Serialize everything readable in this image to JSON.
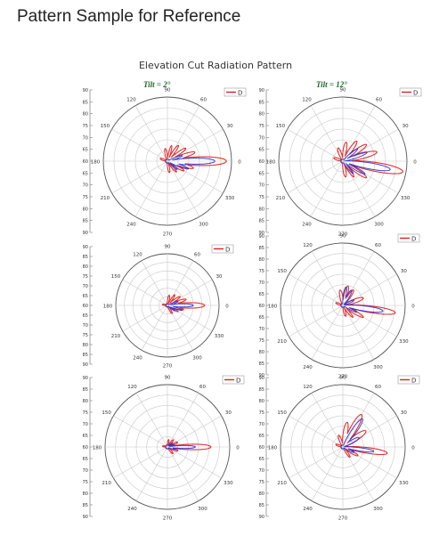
{
  "page": {
    "title": "Pattern Sample for Reference"
  },
  "figure": {
    "title": "Elevation Cut Radiation Pattern",
    "column_labels": [
      "Tilt = 2°",
      "Tilt = 12°"
    ],
    "colors": {
      "series_red": "#e02020",
      "series_blue": "#3030c8",
      "grid": "#c8c8c8",
      "title_green": "#1c6b2e"
    }
  },
  "chart_data": [
    {
      "type": "polar",
      "panel": "row1-left",
      "tilt_deg": 2,
      "angle_labels": [
        "0",
        "30",
        "60",
        "90",
        "120",
        "150",
        "180",
        "210",
        "240",
        "270",
        "300",
        "330"
      ],
      "r_labels": [
        "90",
        "85",
        "80",
        "75",
        "70",
        "65",
        "60",
        "65",
        "70",
        "75",
        "80",
        "85",
        "90"
      ],
      "legend": [
        "D"
      ],
      "series": [
        {
          "color": "red",
          "lobes": [
            [
              0,
              0.92,
              7
            ],
            [
              18,
              0.45,
              6
            ],
            [
              35,
              0.35,
              6
            ],
            [
              55,
              0.3,
              6
            ],
            [
              75,
              0.25,
              6
            ],
            [
              100,
              0.2,
              8
            ],
            [
              -15,
              0.42,
              6
            ],
            [
              -30,
              0.3,
              6
            ],
            [
              -50,
              0.22,
              6
            ],
            [
              -80,
              0.18,
              8
            ],
            [
              160,
              0.12,
              10
            ]
          ]
        },
        {
          "color": "blue",
          "lobes": [
            [
              0,
              0.74,
              6
            ],
            [
              -20,
              0.35,
              5
            ],
            [
              20,
              0.25,
              5
            ],
            [
              -40,
              0.2,
              6
            ],
            [
              -10,
              0.3,
              4
            ]
          ]
        }
      ]
    },
    {
      "type": "polar",
      "panel": "row1-right",
      "tilt_deg": 12,
      "angle_labels": [
        "0",
        "30",
        "60",
        "90",
        "120",
        "150",
        "180",
        "210",
        "240",
        "270",
        "300",
        "330"
      ],
      "r_labels": [
        "90",
        "85",
        "80",
        "75",
        "70",
        "65",
        "60",
        "65",
        "70",
        "75",
        "80",
        "85",
        "90"
      ],
      "legend": [
        "D"
      ],
      "series": [
        {
          "color": "red",
          "lobes": [
            [
              -10,
              0.95,
              7
            ],
            [
              15,
              0.55,
              7
            ],
            [
              35,
              0.45,
              7
            ],
            [
              55,
              0.38,
              7
            ],
            [
              80,
              0.3,
              8
            ],
            [
              110,
              0.22,
              9
            ],
            [
              -35,
              0.45,
              6
            ],
            [
              -55,
              0.3,
              6
            ],
            [
              -80,
              0.25,
              8
            ],
            [
              160,
              0.15,
              10
            ]
          ]
        },
        {
          "color": "blue",
          "lobes": [
            [
              -10,
              0.75,
              6
            ],
            [
              20,
              0.4,
              6
            ],
            [
              40,
              0.3,
              6
            ],
            [
              -30,
              0.4,
              5
            ],
            [
              -50,
              0.25,
              6
            ]
          ]
        }
      ]
    },
    {
      "type": "polar",
      "panel": "row2-left",
      "tilt_deg": 2,
      "angle_labels": [
        "0",
        "30",
        "60",
        "90",
        "120",
        "150",
        "180",
        "210",
        "240",
        "270",
        "300",
        "330"
      ],
      "r_labels": [
        "90",
        "85",
        "80",
        "75",
        "70",
        "65",
        "60",
        "65",
        "70",
        "75",
        "80",
        "85",
        "90"
      ],
      "legend": [
        "D"
      ],
      "series": [
        {
          "color": "red",
          "lobes": [
            [
              0,
              0.72,
              7
            ],
            [
              18,
              0.38,
              6
            ],
            [
              35,
              0.3,
              6
            ],
            [
              55,
              0.25,
              6
            ],
            [
              80,
              0.2,
              8
            ],
            [
              -15,
              0.32,
              6
            ],
            [
              -30,
              0.24,
              6
            ],
            [
              -60,
              0.18,
              8
            ],
            [
              170,
              0.1,
              10
            ]
          ]
        },
        {
          "color": "blue",
          "lobes": [
            [
              0,
              0.5,
              6
            ],
            [
              -18,
              0.3,
              5
            ],
            [
              20,
              0.22,
              5
            ],
            [
              -35,
              0.18,
              6
            ]
          ]
        }
      ]
    },
    {
      "type": "polar",
      "panel": "row2-right",
      "tilt_deg": 12,
      "angle_labels": [
        "0",
        "30",
        "60",
        "90",
        "120",
        "150",
        "180",
        "210",
        "240",
        "270",
        "300",
        "330"
      ],
      "r_labels": [
        "90",
        "85",
        "80",
        "75",
        "70",
        "65",
        "60",
        "65",
        "70",
        "75",
        "80",
        "85",
        "90"
      ],
      "legend": [
        "D"
      ],
      "series": [
        {
          "color": "red",
          "lobes": [
            [
              -8,
              0.85,
              6
            ],
            [
              20,
              0.35,
              8
            ],
            [
              55,
              0.3,
              8
            ],
            [
              75,
              0.32,
              8
            ],
            [
              100,
              0.25,
              9
            ],
            [
              -30,
              0.38,
              6
            ],
            [
              -50,
              0.25,
              6
            ],
            [
              -75,
              0.18,
              8
            ],
            [
              160,
              0.12,
              10
            ]
          ]
        },
        {
          "color": "blue",
          "lobes": [
            [
              -8,
              0.65,
              6
            ],
            [
              60,
              0.28,
              8
            ],
            [
              80,
              0.3,
              7
            ],
            [
              -25,
              0.25,
              5
            ],
            [
              25,
              0.2,
              6
            ]
          ]
        }
      ]
    },
    {
      "type": "polar",
      "panel": "row3-left",
      "tilt_deg": 2,
      "angle_labels": [
        "0",
        "30",
        "60",
        "90",
        "120",
        "150",
        "180",
        "210",
        "240",
        "270",
        "300",
        "330"
      ],
      "r_labels": [
        "90",
        "85",
        "80",
        "75",
        "70",
        "65",
        "60",
        "65",
        "70",
        "75",
        "80",
        "85",
        "90"
      ],
      "legend": [
        "D"
      ],
      "series": [
        {
          "color": "red",
          "lobes": [
            [
              0,
              0.7,
              6
            ],
            [
              25,
              0.18,
              7
            ],
            [
              50,
              0.15,
              7
            ],
            [
              80,
              0.12,
              8
            ],
            [
              -20,
              0.18,
              7
            ],
            [
              -50,
              0.14,
              8
            ],
            [
              170,
              0.08,
              10
            ]
          ]
        },
        {
          "color": "blue",
          "lobes": [
            [
              0,
              0.45,
              5
            ],
            [
              20,
              0.12,
              6
            ],
            [
              -15,
              0.14,
              6
            ],
            [
              40,
              0.1,
              6
            ]
          ]
        }
      ]
    },
    {
      "type": "polar",
      "panel": "row3-right",
      "tilt_deg": 12,
      "angle_labels": [
        "0",
        "30",
        "60",
        "90",
        "120",
        "150",
        "180",
        "210",
        "240",
        "270",
        "300",
        "330"
      ],
      "r_labels": [
        "90",
        "85",
        "80",
        "75",
        "70",
        "65",
        "60",
        "65",
        "70",
        "75",
        "80",
        "85",
        "90"
      ],
      "legend": [
        "D"
      ],
      "series": [
        {
          "color": "red",
          "lobes": [
            [
              -8,
              0.72,
              6
            ],
            [
              35,
              0.45,
              9
            ],
            [
              60,
              0.6,
              8
            ],
            [
              80,
              0.4,
              8
            ],
            [
              110,
              0.2,
              9
            ],
            [
              -30,
              0.28,
              7
            ],
            [
              -55,
              0.2,
              7
            ],
            [
              160,
              0.12,
              10
            ]
          ]
        },
        {
          "color": "blue",
          "lobes": [
            [
              -8,
              0.5,
              5
            ],
            [
              55,
              0.55,
              7
            ],
            [
              30,
              0.3,
              8
            ],
            [
              -25,
              0.2,
              6
            ]
          ]
        }
      ]
    }
  ]
}
